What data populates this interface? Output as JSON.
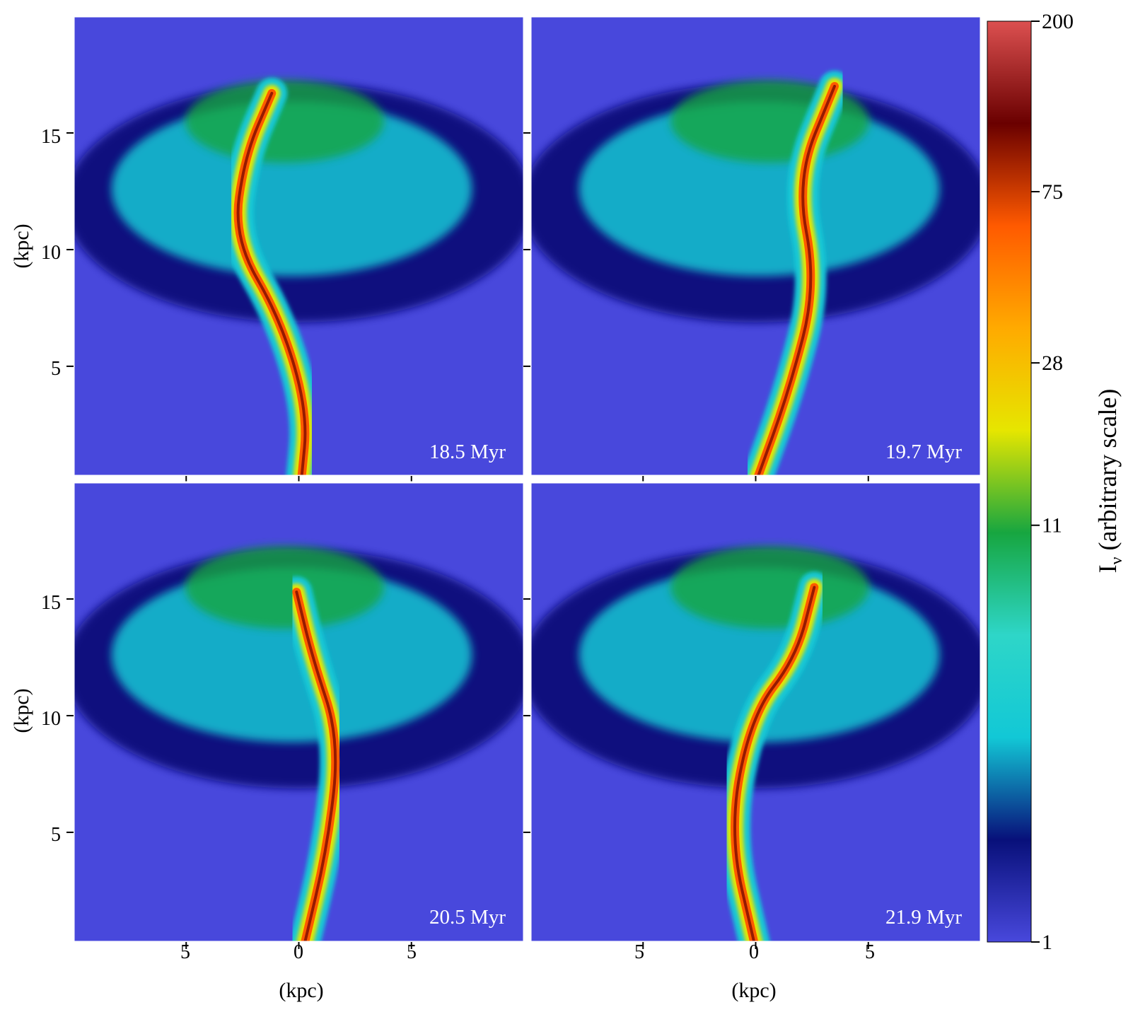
{
  "chart_data": {
    "type": "heatmap",
    "colorbar": {
      "label_main": "I",
      "label_sub": "ν",
      "label_rest": " (arbitrary scale)",
      "ticks": [
        "200",
        "75",
        "28",
        "11",
        "1"
      ],
      "scale": "log",
      "range": [
        1,
        200
      ],
      "colors": [
        "#4848dc",
        "#08107a",
        "#12c8d6",
        "#2ed6c8",
        "#17a640",
        "#e6e600",
        "#ffaa00",
        "#ff5a00",
        "#6a0000",
        "#dc5050"
      ]
    },
    "panels": [
      {
        "time_label": "18.5 Myr",
        "y_ticks": [
          "15",
          "10",
          "5"
        ],
        "y_label": "(kpc)",
        "x_ticks": [],
        "x_label": "",
        "jet": {
          "path": [
            [
              0.1,
              0
            ],
            [
              0.4,
              3
            ],
            [
              -0.8,
              7
            ],
            [
              -2.9,
              10.5
            ],
            [
              -2.4,
              14
            ],
            [
              -1.2,
              16.7
            ]
          ]
        }
      },
      {
        "time_label": "19.7 Myr",
        "y_ticks": [],
        "y_label": "",
        "x_ticks": [],
        "x_label": "",
        "jet": {
          "path": [
            [
              0,
              0
            ],
            [
              1.5,
              4
            ],
            [
              2.7,
              8.5
            ],
            [
              1.8,
              13
            ],
            [
              3.5,
              17
            ]
          ]
        }
      },
      {
        "time_label": "20.5 Myr",
        "y_ticks": [
          "15",
          "10",
          "5"
        ],
        "y_label": "(kpc)",
        "x_ticks": [
          "5",
          "0",
          "5"
        ],
        "x_label": "(kpc)",
        "jet": {
          "path": [
            [
              0.2,
              0
            ],
            [
              1.3,
              4.5
            ],
            [
              1.8,
              9
            ],
            [
              0.6,
              12.5
            ],
            [
              -0.1,
              15.3
            ]
          ]
        }
      },
      {
        "time_label": "21.9 Myr",
        "y_ticks": [],
        "y_label": "",
        "x_ticks": [
          "5",
          "0",
          "5"
        ],
        "x_label": "(kpc)",
        "jet": {
          "path": [
            [
              0,
              0
            ],
            [
              -1.2,
              5
            ],
            [
              -0.2,
              10
            ],
            [
              1.8,
              12.5
            ],
            [
              2.6,
              15.5
            ]
          ]
        }
      }
    ],
    "x_range": [
      -10,
      10
    ],
    "y_range": [
      0.3,
      20
    ]
  }
}
